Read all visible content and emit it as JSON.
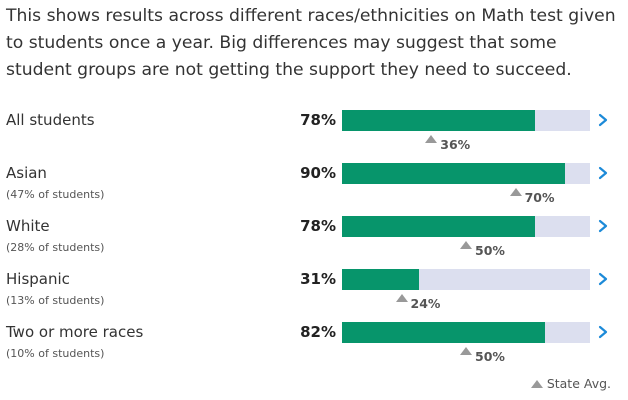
{
  "intro": "This shows results across different races/ethnicities on Math test given to students once a year. Big differences may suggest that some student groups are not getting the support they need to succeed.",
  "colors": {
    "bar_fill": "#07956b",
    "bar_track": "#dcdfef",
    "state_marker": "#999999",
    "chevron": "#1c8ad8"
  },
  "rows": [
    {
      "label": "All students",
      "share": "",
      "pct_label": "78%",
      "pct": 78,
      "state_label": "36%",
      "state": 36
    },
    {
      "label": "Asian",
      "share": "(47% of students)",
      "pct_label": "90%",
      "pct": 90,
      "state_label": "70%",
      "state": 70
    },
    {
      "label": "White",
      "share": "(28% of students)",
      "pct_label": "78%",
      "pct": 78,
      "state_label": "50%",
      "state": 50
    },
    {
      "label": "Hispanic",
      "share": "(13% of students)",
      "pct_label": "31%",
      "pct": 31,
      "state_label": "24%",
      "state": 24
    },
    {
      "label": "Two or more races",
      "share": "(10% of students)",
      "pct_label": "82%",
      "pct": 82,
      "state_label": "50%",
      "state": 50
    }
  ],
  "legend": {
    "icon": "triangle-up-icon",
    "label": "State Avg."
  },
  "row_icon": "chevron-right-icon"
}
